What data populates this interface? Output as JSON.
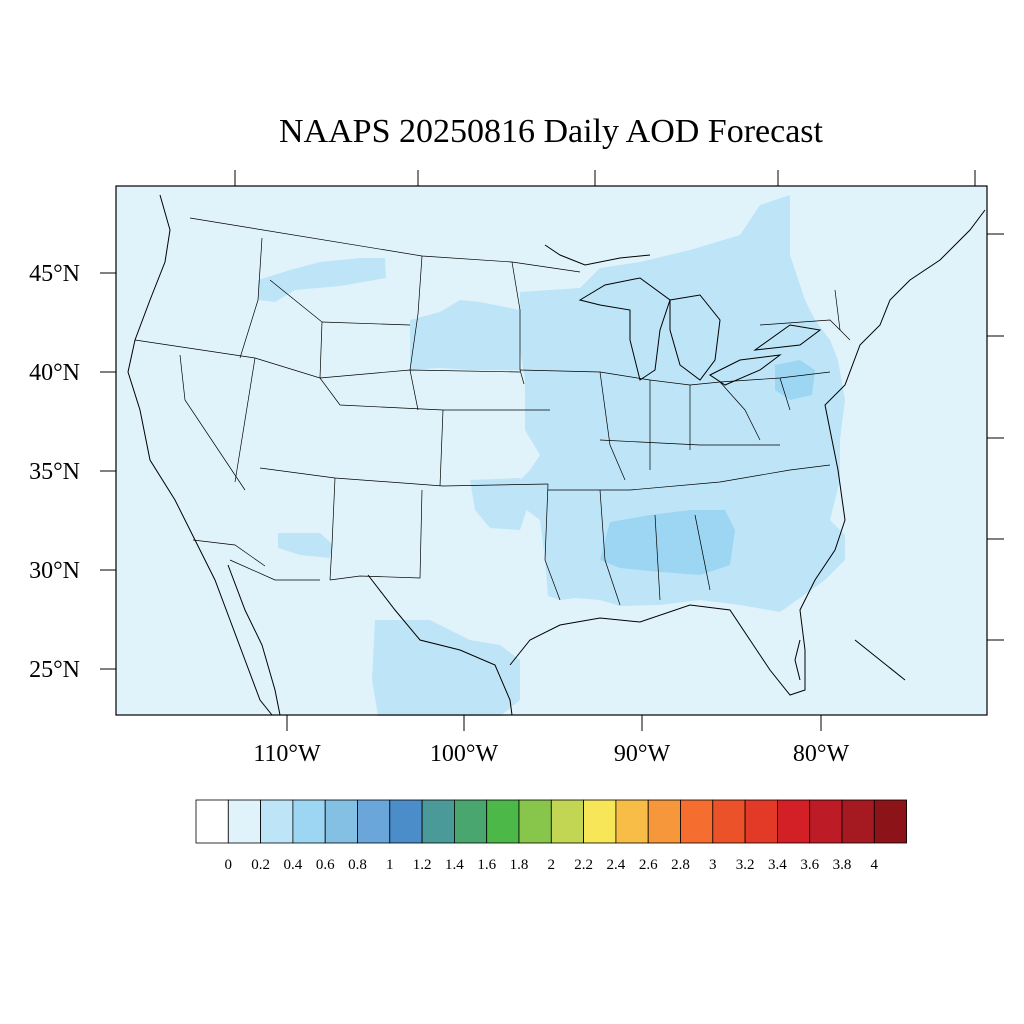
{
  "title": "NAAPS 20250816 Daily AOD Forecast",
  "map": {
    "background_color": "#e0f3fb",
    "lat_labels": [
      "45°N",
      "40°N",
      "35°N",
      "30°N",
      "25°N"
    ],
    "lon_labels": [
      "110°W",
      "100°W",
      "90°W",
      "80°W"
    ]
  },
  "colorbar": {
    "labels": [
      "0",
      "0.2",
      "0.4",
      "0.6",
      "0.8",
      "1",
      "1.2",
      "1.4",
      "1.6",
      "1.8",
      "2",
      "2.2",
      "2.4",
      "2.6",
      "2.8",
      "3",
      "3.2",
      "3.4",
      "3.6",
      "3.8",
      "4"
    ],
    "colors": [
      "#ffffff",
      "#e0f3fb",
      "#bde5f7",
      "#9dd6f2",
      "#84bfe4",
      "#6aa6da",
      "#4a8dc9",
      "#4a9a9a",
      "#49a66e",
      "#4bb848",
      "#87c64b",
      "#c3d653",
      "#f7e657",
      "#f7bd46",
      "#f7973c",
      "#f56e2f",
      "#ec5229",
      "#e23a27",
      "#d32027",
      "#bd1b26",
      "#a51a21",
      "#8c1419"
    ]
  }
}
